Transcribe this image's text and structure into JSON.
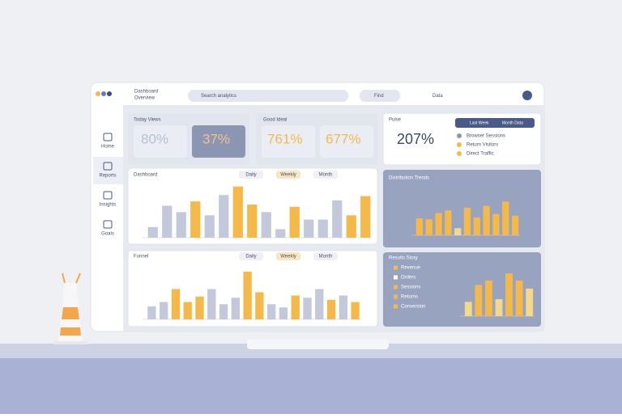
{
  "header": {
    "brand": "Dashboard",
    "subtitle": "Overview",
    "search": "Search analytics",
    "quick": "Find",
    "user": "Data"
  },
  "sidebar": [
    "Home",
    "Reports",
    "Insights",
    "Goals"
  ],
  "cards": [
    {
      "title": "Today Views",
      "kpis": [
        "80%",
        "37%"
      ]
    },
    {
      "title": "Good Ideal",
      "kpis": [
        "761%",
        "677%"
      ]
    },
    {
      "title": "Pulse",
      "kpi": "207%",
      "buttons": [
        "Last Week",
        "Month Data"
      ],
      "legend": [
        "Browser Sessions",
        "Return Visitors",
        "Direct Traffic"
      ]
    }
  ],
  "charts": [
    {
      "title": "Dashboard",
      "tabs": [
        "Daily",
        "Weekly",
        "Month"
      ],
      "ylim": [
        0,
        100
      ],
      "values": [
        20,
        60,
        48,
        68,
        42,
        80,
        96,
        62,
        48,
        16,
        58,
        34,
        34,
        70,
        42,
        78
      ],
      "colors": [
        "#c3c9da",
        "#c3c9da",
        "#c3c9da",
        "#f5b94a",
        "#c3c9da",
        "#c3c9da",
        "#f5b94a",
        "#f5b94a",
        "#c3c9da",
        "#c3c9da",
        "#f5b94a",
        "#c3c9da",
        "#c3c9da",
        "#c3c9da",
        "#f5b94a",
        "#f5b94a"
      ]
    },
    {
      "title": "Distribution Trends",
      "ylim": [
        0,
        100
      ],
      "values": [
        38,
        36,
        50,
        56,
        16,
        62,
        40,
        66,
        48,
        76,
        44
      ],
      "colors": [
        "#f5b94a",
        "#f5b94a",
        "#f5b94a",
        "#f5b94a",
        "#f5d98a",
        "#f5b94a",
        "#f5b94a",
        "#f5b94a",
        "#f5b94a",
        "#f5b94a",
        "#f5b94a"
      ]
    },
    {
      "title": "Funnel",
      "tabs": [
        "Daily",
        "Weekly",
        "Month"
      ],
      "ylim": [
        0,
        100
      ],
      "values": [
        24,
        32,
        56,
        32,
        42,
        56,
        28,
        40,
        88,
        50,
        28,
        22,
        44,
        40,
        56,
        36,
        44,
        32
      ],
      "colors": [
        "#c3c9da",
        "#c3c9da",
        "#f5b94a",
        "#f5b94a",
        "#f5b94a",
        "#c3c9da",
        "#c3c9da",
        "#c3c9da",
        "#f5b94a",
        "#f5b94a",
        "#c3c9da",
        "#c3c9da",
        "#f5b94a",
        "#c3c9da",
        "#c3c9da",
        "#f5b94a",
        "#c3c9da",
        "#f5b94a"
      ]
    },
    {
      "title": "Results Story",
      "legend": [
        "Revenue",
        "Orders",
        "Sessions",
        "Returns",
        "Conversion"
      ],
      "ylim": [
        0,
        100
      ],
      "values": [
        32,
        70,
        80,
        38,
        96,
        80,
        62
      ],
      "colors": [
        "#f5d98a",
        "#f5b94a",
        "#f5b94a",
        "#f5d98a",
        "#f5b94a",
        "#f5b94a",
        "#f5d98a"
      ]
    }
  ]
}
